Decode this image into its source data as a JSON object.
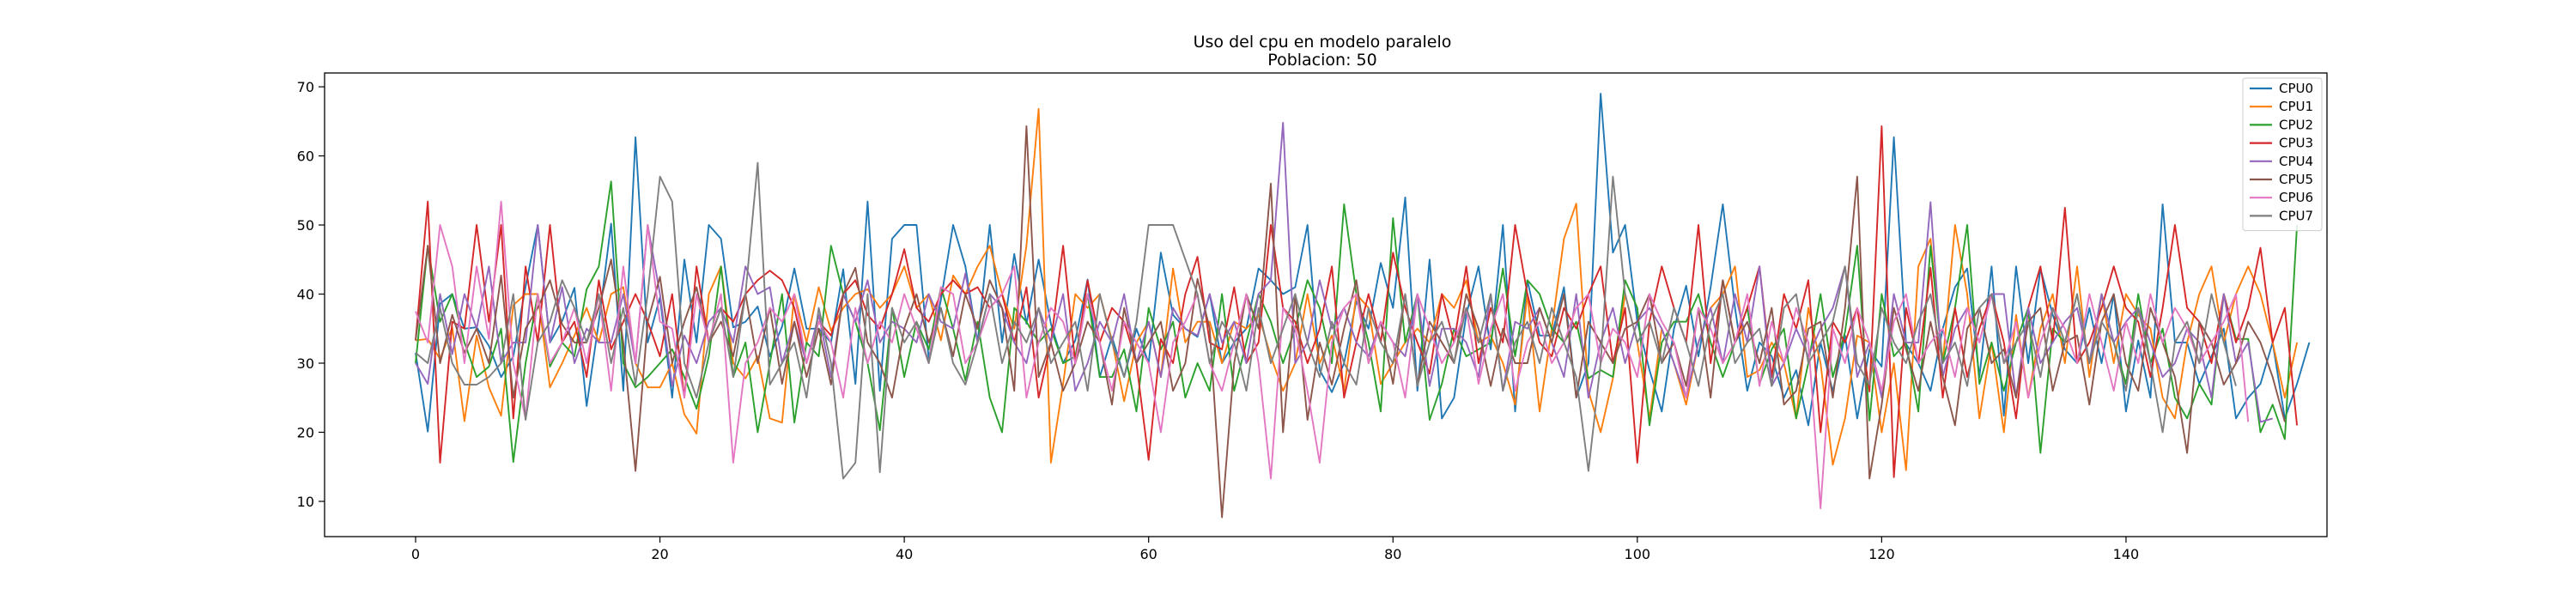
{
  "chart_data": {
    "type": "line",
    "title": "Uso del cpu en modelo paralelo",
    "subtitle": "Poblacion: 50",
    "xlabel": "",
    "ylabel": "",
    "xlim": [
      -7.45,
      156.45
    ],
    "ylim": [
      4.9,
      72.0
    ],
    "xticks": [
      0,
      20,
      40,
      60,
      80,
      100,
      120,
      140
    ],
    "yticks": [
      10,
      20,
      30,
      40,
      50,
      60,
      70
    ],
    "grid": false,
    "legend_position": "top-right",
    "series": [
      {
        "name": "CPU0",
        "color": "#1f77b4",
        "values": [
          31.5,
          20.1,
          38.6,
          40,
          35,
          35.2,
          32.5,
          28,
          31,
          41.1,
          50,
          33,
          36.1,
          40.9,
          23.8,
          36,
          50.2,
          26,
          62.7,
          33,
          39.5,
          25,
          45,
          33,
          50,
          48,
          35.2,
          36,
          38.2,
          31,
          35.3,
          43.7,
          35,
          35,
          33,
          43.6,
          27,
          53.4,
          26,
          48,
          50,
          50,
          30.6,
          39.2,
          50,
          44,
          33,
          50,
          33,
          45.8,
          35.7,
          45,
          35.7,
          30,
          33.3,
          42.1,
          28,
          33.8,
          28,
          35,
          30,
          46,
          37,
          35,
          33.8,
          40,
          30,
          33,
          35,
          43.7,
          42,
          40,
          41,
          50,
          29,
          25.8,
          30,
          39,
          35,
          44.5,
          38,
          54,
          26,
          45,
          22,
          25,
          37,
          44,
          32,
          50,
          23,
          42,
          34,
          34,
          41,
          25,
          30,
          69,
          46,
          50,
          36,
          29,
          23,
          35,
          41.2,
          31,
          41,
          53,
          38,
          26,
          33,
          31,
          25,
          29,
          21,
          33,
          25.9,
          34,
          22,
          32,
          29.5,
          62.7,
          32.8,
          30,
          26,
          35,
          41,
          43.7,
          28,
          44,
          22.4,
          44,
          30,
          43.7,
          37,
          32,
          30,
          38,
          30,
          40,
          23,
          33.3,
          25,
          53,
          33,
          33,
          27,
          31,
          35,
          22,
          25,
          27,
          33,
          22,
          27,
          33
        ]
      },
      {
        "name": "CPU1",
        "color": "#ff7f0e",
        "values": [
          33.3,
          33.5,
          30.6,
          35.2,
          21.6,
          34,
          26.5,
          22.4,
          38.4,
          40,
          40,
          26.5,
          30,
          34,
          38,
          33,
          40,
          41,
          30,
          26.5,
          26.5,
          30,
          22.6,
          19.8,
          40,
          44,
          30,
          27.8,
          31,
          22,
          21.4,
          40,
          33,
          41,
          34.7,
          38,
          40,
          40.7,
          38,
          40,
          44,
          38,
          40,
          33.3,
          42.7,
          40,
          44,
          47,
          40,
          35,
          47,
          66.8,
          15.6,
          27,
          40,
          38,
          40,
          33.3,
          24.5,
          33,
          36,
          28,
          43.7,
          33,
          36,
          36,
          30,
          36,
          35,
          37,
          31,
          26,
          30,
          40,
          30,
          34,
          26,
          40,
          38,
          27,
          30,
          33,
          35,
          33,
          40,
          38,
          42,
          33,
          34,
          30,
          24,
          40,
          23,
          35,
          48,
          53.1,
          26,
          20,
          27.8,
          40,
          33,
          22,
          35,
          30,
          24,
          33,
          38,
          40,
          44,
          28,
          29,
          33,
          30,
          22,
          38,
          30,
          15.3,
          22,
          34,
          33,
          20,
          30,
          14.5,
          44,
          48,
          30,
          50,
          40,
          22,
          33,
          20,
          37,
          25,
          35,
          40,
          30,
          44,
          28,
          40,
          30,
          40,
          37,
          35,
          25,
          22,
          33,
          40,
          44,
          33,
          40,
          44,
          40,
          33,
          25,
          33
        ]
      },
      {
        "name": "CPU2",
        "color": "#2ca02c",
        "values": [
          30,
          47,
          36,
          40,
          33,
          28,
          29.5,
          35,
          15.7,
          30,
          40,
          29.5,
          33,
          31,
          40.7,
          44,
          56.3,
          30,
          26.5,
          28,
          30,
          32,
          28,
          23.4,
          31,
          44,
          28,
          33,
          20,
          30,
          40,
          21.4,
          33,
          31,
          47,
          40,
          36,
          30,
          20.3,
          38,
          28,
          36,
          32,
          41,
          35,
          27.5,
          36,
          25,
          20,
          38,
          36,
          33,
          35,
          30,
          31,
          40,
          28,
          28,
          32,
          23,
          38,
          32,
          36,
          25,
          30,
          26,
          40,
          26,
          33,
          40,
          36,
          30,
          35,
          42,
          38,
          30,
          53,
          40,
          33,
          23,
          51,
          33,
          40,
          21.8,
          27,
          35,
          31,
          32,
          33,
          43.7,
          31,
          42,
          40,
          35,
          33,
          36,
          27.8,
          29,
          28,
          42,
          38,
          21,
          33,
          36,
          36,
          40,
          33,
          28,
          33,
          38,
          27,
          32,
          35,
          22,
          30,
          40,
          28,
          34.5,
          47,
          21.7,
          40,
          31,
          33,
          23,
          47,
          30,
          38,
          50,
          27,
          33,
          26,
          33,
          38,
          17,
          35,
          33,
          40,
          30,
          40,
          33,
          27,
          40,
          30,
          35,
          25,
          22,
          27,
          24,
          40,
          33.5,
          33.5,
          20,
          24,
          19,
          50
        ]
      },
      {
        "name": "CPU3",
        "color": "#d62728",
        "values": [
          33.3,
          53.4,
          15.6,
          36,
          35,
          50,
          36,
          50,
          22,
          44,
          33,
          50,
          33,
          36,
          28,
          42,
          32,
          36,
          40,
          36,
          31,
          40,
          25,
          44,
          33,
          38,
          36,
          40,
          42,
          43.4,
          42,
          38,
          30,
          36,
          34,
          40,
          42,
          37,
          35,
          40,
          46.5,
          38,
          36,
          40,
          42,
          40,
          41,
          38,
          40,
          33,
          41,
          25,
          33,
          47,
          30,
          42,
          33,
          38,
          36,
          30,
          16,
          33.5,
          30,
          40,
          45.4,
          33,
          32,
          41,
          30,
          33,
          50,
          38,
          36,
          30,
          35,
          44,
          25,
          33,
          40,
          33,
          46,
          38,
          33,
          28.5,
          40,
          33,
          44,
          30,
          38,
          33,
          50,
          40,
          33,
          31,
          38,
          35,
          40,
          44,
          30,
          38,
          15.6,
          36,
          44,
          38,
          33,
          50,
          30,
          42,
          33,
          38,
          44,
          28,
          40,
          35,
          42,
          20,
          36,
          33,
          38,
          25.9,
          64.3,
          13.5,
          38,
          30,
          43.8,
          25,
          38,
          28,
          35,
          40,
          33,
          22,
          38,
          44,
          33,
          52.5,
          30,
          33,
          38,
          44,
          38,
          36,
          28,
          38,
          50,
          38,
          36,
          30,
          40,
          33,
          38,
          46.7,
          33,
          38,
          21
        ]
      },
      {
        "name": "CPU4",
        "color": "#9467bd",
        "values": [
          30,
          27,
          40,
          31.3,
          40,
          35,
          44,
          30,
          33,
          33,
          50,
          33,
          41,
          30,
          35,
          33,
          33,
          40,
          30,
          50,
          40,
          26.7,
          34,
          30,
          36,
          38,
          33,
          44,
          40,
          41,
          30,
          36,
          30,
          37,
          28,
          40,
          36,
          42,
          33,
          36,
          35,
          33,
          40,
          36,
          35,
          43,
          33,
          40,
          38,
          33,
          30,
          38,
          33,
          40,
          26,
          30,
          36,
          33,
          40,
          30,
          36,
          28,
          38,
          35,
          34,
          40,
          33,
          36,
          30,
          40,
          42,
          64.8,
          30,
          33,
          42,
          35,
          38,
          33,
          31,
          36,
          33,
          31,
          40,
          26.7,
          35,
          35,
          33,
          28,
          40,
          26,
          36,
          35,
          38,
          33,
          28,
          40,
          25,
          33,
          38,
          30,
          36,
          38,
          35,
          30,
          25,
          33,
          38,
          30,
          40,
          33,
          44,
          26.7,
          30,
          35,
          31,
          35,
          38,
          44,
          28,
          33,
          25,
          40,
          33,
          33,
          53.3,
          28,
          35,
          38,
          33,
          40,
          40,
          25,
          38,
          30,
          33,
          36,
          38,
          30,
          40,
          33,
          36,
          38,
          33,
          28,
          30,
          35,
          33,
          25,
          40,
          30,
          33,
          21.5,
          22
        ]
      },
      {
        "name": "CPU5",
        "color": "#8c564b",
        "values": [
          33.3,
          47,
          30,
          37,
          31.5,
          35,
          30,
          42.7,
          25,
          35,
          38,
          42,
          35.6,
          33,
          33,
          38,
          45,
          33,
          14.4,
          36,
          42.5,
          30,
          36,
          41,
          33,
          36,
          31,
          40,
          30,
          38,
          27,
          36,
          28,
          35,
          26.9,
          40,
          43.8,
          33,
          30,
          25,
          35,
          40,
          33,
          38,
          31,
          40,
          35,
          42,
          38,
          26,
          64.3,
          28,
          33,
          26,
          30,
          36,
          33,
          24,
          38,
          30,
          33,
          36,
          26,
          30,
          42.2,
          35,
          7.7,
          30,
          40,
          35,
          56,
          20,
          40,
          21.8,
          33,
          26.9,
          35,
          42,
          30,
          36,
          27,
          40,
          26.9,
          36,
          33,
          30,
          40,
          35,
          26.7,
          35,
          30,
          30,
          38,
          33,
          40,
          25,
          36,
          33,
          30,
          35,
          36,
          40,
          30,
          33,
          26.7,
          38,
          25,
          42,
          33,
          36,
          30,
          38,
          24,
          26,
          35,
          36,
          25,
          38,
          57,
          13.3,
          24,
          38,
          32,
          26,
          36,
          28,
          21,
          35,
          38,
          30,
          32,
          25,
          36,
          38,
          26,
          33,
          34,
          24,
          36,
          40,
          30,
          26,
          38,
          33,
          28,
          17,
          36,
          33,
          26.9,
          30,
          36,
          33,
          28,
          21.5
        ]
      },
      {
        "name": "CPU6",
        "color": "#e377c2",
        "values": [
          37.5,
          33,
          50,
          44,
          30,
          44,
          33.5,
          53.4,
          30,
          22,
          40,
          30,
          33,
          38,
          30,
          40,
          26,
          44,
          30,
          50,
          36,
          35,
          25,
          40,
          33,
          40,
          15.6,
          30,
          33,
          38,
          36,
          40,
          30,
          36,
          33,
          25,
          38,
          30,
          36,
          33,
          40,
          35,
          30,
          41,
          40,
          30,
          33,
          38,
          40,
          44,
          25,
          33,
          38,
          36,
          30,
          40,
          33,
          26,
          36,
          33,
          30,
          20,
          33,
          36,
          40,
          30,
          26,
          33,
          40,
          30,
          13.3,
          38,
          35,
          26,
          15.6,
          33,
          38,
          40,
          30,
          36,
          33,
          25,
          40,
          35,
          30,
          33,
          38,
          27,
          35,
          40,
          26,
          33,
          36,
          30,
          33,
          38,
          40,
          30,
          35,
          33,
          28,
          40,
          36,
          33,
          25,
          38,
          35,
          30,
          33,
          40,
          26.7,
          36,
          30,
          38,
          33,
          9,
          35,
          30,
          38,
          33,
          26,
          36,
          40,
          30,
          33,
          35,
          28,
          38,
          33,
          40,
          30,
          36,
          25,
          33,
          38,
          35,
          30,
          40,
          33,
          26,
          36,
          30,
          40,
          33,
          38,
          35,
          30,
          33,
          36,
          40,
          21.5
        ]
      },
      {
        "name": "CPU7",
        "color": "#7f7f7f",
        "values": [
          31.5,
          30,
          38,
          30,
          26.9,
          26.9,
          28,
          30,
          40,
          21.8,
          33,
          36,
          42,
          38,
          33,
          40,
          30,
          38,
          26.9,
          40,
          57,
          53.4,
          30,
          25,
          33,
          38,
          28,
          40,
          59,
          26.9,
          30,
          33,
          25,
          38,
          30,
          13.3,
          15.6,
          40,
          14.2,
          38,
          33,
          36,
          30,
          38,
          30,
          26.9,
          33,
          40,
          30,
          36,
          33,
          38,
          30,
          33,
          36,
          26,
          40,
          33,
          28,
          36,
          50,
          50,
          50,
          45,
          40,
          30,
          36,
          33,
          26,
          38,
          30,
          35,
          40,
          33,
          28,
          36,
          30,
          26.9,
          38,
          33,
          30,
          40,
          26.7,
          33,
          36,
          30,
          38,
          33,
          40,
          26,
          33,
          36,
          30,
          38,
          33,
          28,
          14.4,
          30,
          57,
          40,
          33,
          36,
          30,
          38,
          33,
          26.7,
          36,
          40,
          30,
          33,
          35,
          26.7,
          38,
          40,
          30,
          33,
          36,
          44,
          30,
          26.9,
          38,
          33,
          30,
          36,
          40,
          30,
          33,
          26.7,
          38,
          40,
          30,
          33,
          36,
          28,
          38,
          33,
          40,
          30,
          36,
          33,
          26,
          38,
          30,
          20,
          33,
          36,
          30,
          40,
          33,
          26.7
        ]
      }
    ]
  }
}
